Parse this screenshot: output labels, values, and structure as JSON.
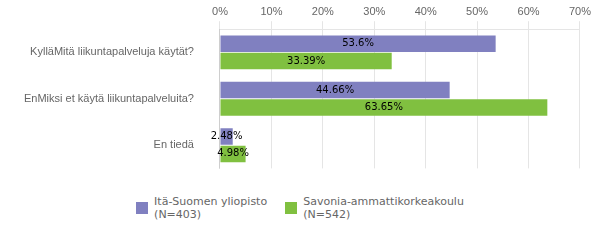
{
  "chart_data": {
    "type": "bar",
    "orientation": "horizontal",
    "categories": [
      "En tiedä",
      "EnMiksi et käytä liikuntapalveluita?",
      "KylläMitä liikuntapalveluja käytät?"
    ],
    "series": [
      {
        "name": "Itä-Suomen yliopisto\n(N=403)",
        "color": "#8080c0",
        "values": [
          2.48,
          44.66,
          53.6
        ],
        "value_labels": [
          "2.48%",
          "44.66%",
          "53.6%"
        ]
      },
      {
        "name": "Savonia-ammattikorkeakoulu\n(N=542)",
        "color": "#80c040",
        "values": [
          4.98,
          63.65,
          33.39
        ],
        "value_labels": [
          "4.98%",
          "63.65%",
          "33.39%"
        ]
      }
    ],
    "xlim": [
      0,
      70
    ],
    "xticks": [
      {
        "value": 0,
        "label": "0%"
      },
      {
        "value": 10,
        "label": "10%"
      },
      {
        "value": 20,
        "label": "20%"
      },
      {
        "value": 30,
        "label": "30%"
      },
      {
        "value": 40,
        "label": "40%"
      },
      {
        "value": 50,
        "label": "50%"
      },
      {
        "value": 60,
        "label": "60%"
      },
      {
        "value": 70,
        "label": "70%"
      }
    ],
    "grid": true,
    "legend": "bottom",
    "data_labels": true
  }
}
